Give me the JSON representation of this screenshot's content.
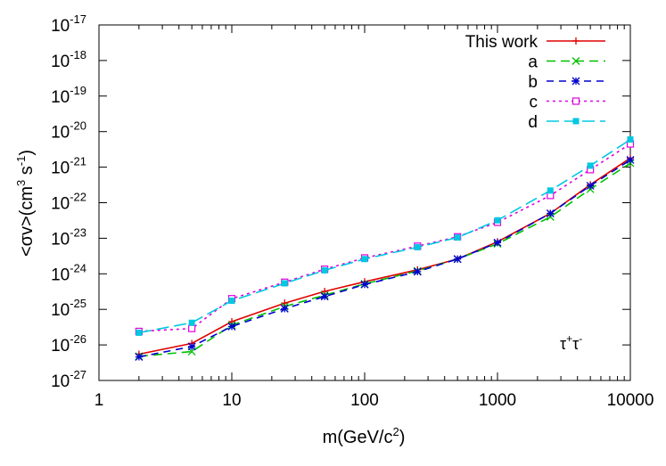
{
  "chart_data": {
    "type": "line",
    "title": "",
    "xlabel": "m(GeV/c²)",
    "ylabel": "<σv>(cm³ s⁻¹)",
    "xscale": "log",
    "yscale": "log",
    "xlim": [
      1,
      10000
    ],
    "ylim": [
      1e-27,
      1e-17
    ],
    "grid": false,
    "legend_position": "top-right",
    "x_ticks": [
      {
        "value": 1,
        "label": "1"
      },
      {
        "value": 10,
        "label": "10"
      },
      {
        "value": 100,
        "label": "100"
      },
      {
        "value": 1000,
        "label": "1000"
      },
      {
        "value": 10000,
        "label": "10000"
      }
    ],
    "y_ticks": [
      {
        "exp": -27,
        "base": "10",
        "sup": "-27"
      },
      {
        "exp": -26,
        "base": "10",
        "sup": "-26"
      },
      {
        "exp": -25,
        "base": "10",
        "sup": "-25"
      },
      {
        "exp": -24,
        "base": "10",
        "sup": "-24"
      },
      {
        "exp": -23,
        "base": "10",
        "sup": "-23"
      },
      {
        "exp": -22,
        "base": "10",
        "sup": "-22"
      },
      {
        "exp": -21,
        "base": "10",
        "sup": "-21"
      },
      {
        "exp": -20,
        "base": "10",
        "sup": "-20"
      },
      {
        "exp": -19,
        "base": "10",
        "sup": "-19"
      },
      {
        "exp": -18,
        "base": "10",
        "sup": "-18"
      },
      {
        "exp": -17,
        "base": "10",
        "sup": "-17"
      }
    ],
    "annotation": {
      "base": "τ",
      "sup1": "+",
      "mid": "τ",
      "sup2": "-"
    },
    "series": [
      {
        "name": "This work",
        "color": "#e00000",
        "dash": "",
        "marker": "plus",
        "x": [
          2,
          5,
          10,
          25,
          50,
          100,
          250,
          500,
          1000,
          2500,
          5000,
          10000
        ],
        "y": [
          5.5e-27,
          1.1e-26,
          4.5e-26,
          1.5e-25,
          3.2e-25,
          6e-25,
          1.3e-24,
          2.6e-24,
          8e-24,
          5e-23,
          3.2e-22,
          1.8e-21
        ]
      },
      {
        "name": "a",
        "color": "#00c000",
        "dash": "10,6",
        "marker": "cross",
        "x": [
          2,
          5,
          10,
          25,
          50,
          100,
          250,
          500,
          1000,
          2500,
          5000,
          10000
        ],
        "y": [
          4.8e-27,
          6.5e-27,
          3.6e-26,
          1.2e-25,
          2.5e-25,
          5.2e-25,
          1.2e-24,
          2.6e-24,
          7e-24,
          4e-23,
          2.4e-22,
          1.3e-21
        ]
      },
      {
        "name": "b",
        "color": "#0000d0",
        "dash": "8,6",
        "marker": "star",
        "x": [
          2,
          5,
          10,
          25,
          50,
          100,
          250,
          500,
          1000,
          2500,
          5000,
          10000
        ],
        "y": [
          4.6e-27,
          9e-27,
          3.3e-26,
          1.05e-25,
          2.3e-25,
          5e-25,
          1.15e-24,
          2.6e-24,
          7.5e-24,
          5e-23,
          3e-22,
          1.6e-21
        ]
      },
      {
        "name": "c",
        "color": "#e000e0",
        "dash": "3,4",
        "marker": "open-square",
        "x": [
          2,
          5,
          10,
          25,
          50,
          100,
          250,
          500,
          1000,
          2500,
          5000,
          10000
        ],
        "y": [
          2.4e-26,
          2.9e-26,
          2e-25,
          5.8e-25,
          1.35e-24,
          2.8e-24,
          6e-24,
          1.1e-23,
          2.8e-23,
          1.6e-22,
          8.5e-22,
          4.5e-21
        ]
      },
      {
        "name": "d",
        "color": "#00c8e0",
        "dash": "14,6",
        "marker": "filled-square",
        "x": [
          2,
          5,
          10,
          25,
          50,
          100,
          250,
          500,
          1000,
          2500,
          5000,
          10000
        ],
        "y": [
          2.2e-26,
          4.2e-26,
          1.75e-25,
          5.4e-25,
          1.25e-24,
          2.6e-24,
          5.6e-24,
          1.05e-23,
          3.2e-23,
          2.2e-22,
          1.1e-21,
          6e-21
        ]
      }
    ]
  }
}
